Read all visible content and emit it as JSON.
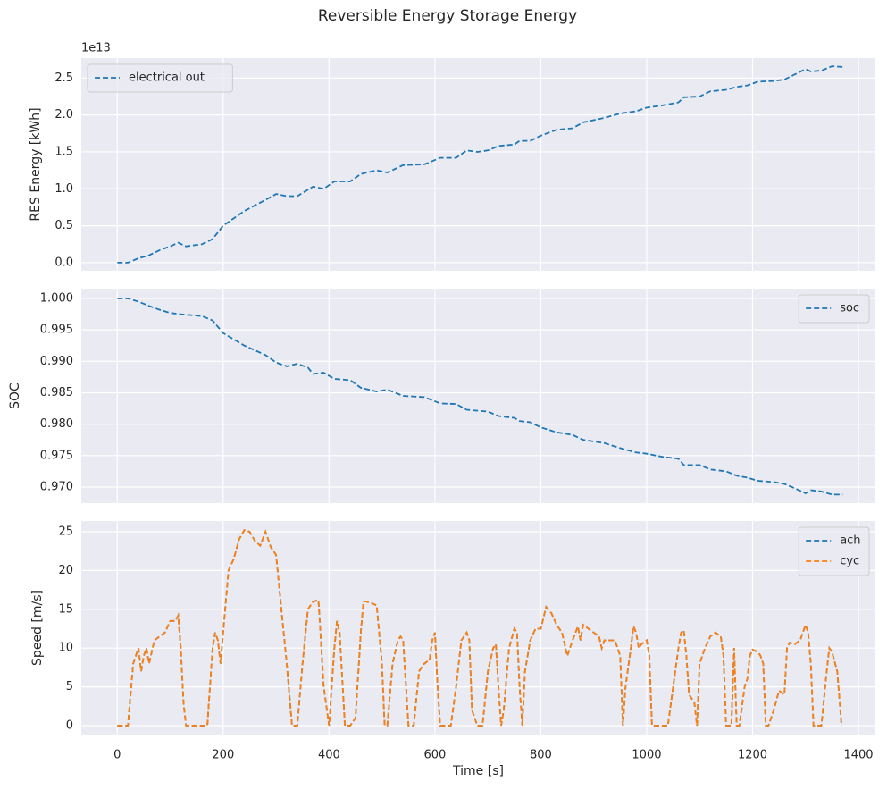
{
  "title": "Reversible Energy Storage Energy",
  "chart_data": [
    {
      "type": "line",
      "ylabel": "RES Energy [kWh]",
      "offset_label": "1e13",
      "xlim": [
        -68,
        1432
      ],
      "ylim": [
        -0.11,
        2.77
      ],
      "xticks": [
        0,
        200,
        400,
        600,
        800,
        1000,
        1200,
        1400
      ],
      "yticks": [
        {
          "value": 0,
          "label": "0.0"
        },
        0.5,
        {
          "value": 1,
          "label": "1.0"
        },
        1.5,
        {
          "value": 2,
          "label": "2.0"
        },
        2.5
      ],
      "grid": true,
      "legend": "upper left",
      "x": [
        0,
        20,
        40,
        60,
        80,
        100,
        115,
        130,
        160,
        180,
        200,
        240,
        280,
        300,
        320,
        340,
        370,
        390,
        410,
        440,
        460,
        490,
        510,
        540,
        580,
        610,
        640,
        660,
        680,
        700,
        720,
        750,
        760,
        780,
        800,
        830,
        860,
        880,
        920,
        950,
        980,
        1000,
        1030,
        1060,
        1070,
        1100,
        1120,
        1150,
        1170,
        1190,
        1210,
        1240,
        1260,
        1280,
        1300,
        1310,
        1330,
        1350,
        1370
      ],
      "series": [
        {
          "name": "electrical out",
          "color": "#1f77b4",
          "values": [
            0,
            0,
            0.06,
            0.1,
            0.17,
            0.22,
            0.27,
            0.22,
            0.25,
            0.32,
            0.5,
            0.7,
            0.85,
            0.93,
            0.9,
            0.9,
            1.03,
            1.0,
            1.1,
            1.1,
            1.2,
            1.25,
            1.22,
            1.32,
            1.33,
            1.42,
            1.42,
            1.52,
            1.5,
            1.52,
            1.58,
            1.6,
            1.65,
            1.65,
            1.72,
            1.8,
            1.82,
            1.9,
            1.96,
            2.02,
            2.05,
            2.1,
            2.13,
            2.17,
            2.24,
            2.25,
            2.32,
            2.34,
            2.38,
            2.4,
            2.45,
            2.46,
            2.48,
            2.55,
            2.62,
            2.59,
            2.6,
            2.66,
            2.65
          ]
        }
      ]
    },
    {
      "type": "line",
      "ylabel": "SOC",
      "xlim": [
        -68,
        1432
      ],
      "ylim": [
        0.96744,
        1.00156
      ],
      "xticks": [
        0,
        200,
        400,
        600,
        800,
        1000,
        1200,
        1400
      ],
      "yticks": [
        {
          "value": 0.97,
          "label": "0.970"
        },
        0.975,
        {
          "value": 0.98,
          "label": "0.980"
        },
        0.985,
        {
          "value": 0.99,
          "label": "0.990"
        },
        0.995,
        {
          "value": 1,
          "label": "1.000"
        }
      ],
      "grid": true,
      "legend": "upper right",
      "x": [
        0,
        20,
        40,
        60,
        80,
        100,
        120,
        160,
        180,
        200,
        240,
        280,
        300,
        320,
        340,
        360,
        370,
        390,
        410,
        440,
        460,
        490,
        510,
        540,
        580,
        610,
        640,
        660,
        700,
        720,
        750,
        760,
        780,
        800,
        830,
        860,
        880,
        920,
        950,
        980,
        1000,
        1030,
        1060,
        1070,
        1100,
        1120,
        1150,
        1170,
        1190,
        1210,
        1240,
        1260,
        1280,
        1300,
        1310,
        1330,
        1350,
        1370
      ],
      "series": [
        {
          "name": "soc",
          "color": "#1f77b4",
          "values": [
            1.0,
            1.0,
            0.9995,
            0.9988,
            0.9982,
            0.9977,
            0.9975,
            0.9972,
            0.9965,
            0.9945,
            0.9925,
            0.991,
            0.9898,
            0.9892,
            0.9896,
            0.989,
            0.988,
            0.9882,
            0.9872,
            0.987,
            0.9858,
            0.9852,
            0.9855,
            0.9845,
            0.9843,
            0.9833,
            0.9832,
            0.9823,
            0.982,
            0.9813,
            0.981,
            0.9805,
            0.9803,
            0.9795,
            0.9787,
            0.9783,
            0.9775,
            0.977,
            0.9762,
            0.9755,
            0.9753,
            0.9748,
            0.9745,
            0.9735,
            0.9735,
            0.9728,
            0.9725,
            0.9718,
            0.9715,
            0.971,
            0.9708,
            0.9705,
            0.9698,
            0.969,
            0.9695,
            0.9693,
            0.9688,
            0.9688
          ]
        }
      ]
    },
    {
      "type": "line",
      "ylabel": "Speed [m/s]",
      "xlabel": "Time [s]",
      "xlim": [
        -68,
        1432
      ],
      "ylim": [
        -1.15,
        26.38
      ],
      "xticks": [
        0,
        200,
        400,
        600,
        800,
        1000,
        1200,
        1400
      ],
      "yticks": [
        0,
        5,
        10,
        15,
        20,
        25
      ],
      "grid": true,
      "legend": "upper right",
      "x": [
        0,
        10,
        20,
        30,
        40,
        45,
        50,
        55,
        60,
        70,
        80,
        90,
        100,
        110,
        115,
        120,
        125,
        130,
        140,
        150,
        160,
        170,
        180,
        185,
        190,
        195,
        200,
        210,
        220,
        230,
        240,
        250,
        260,
        270,
        280,
        290,
        300,
        310,
        320,
        330,
        340,
        350,
        360,
        370,
        380,
        390,
        400,
        410,
        415,
        420,
        430,
        440,
        450,
        460,
        465,
        470,
        480,
        490,
        500,
        505,
        510,
        520,
        530,
        535,
        540,
        550,
        560,
        570,
        580,
        590,
        595,
        600,
        605,
        610,
        620,
        630,
        640,
        650,
        660,
        665,
        670,
        680,
        690,
        700,
        710,
        715,
        720,
        725,
        730,
        740,
        750,
        755,
        760,
        765,
        770,
        780,
        790,
        800,
        810,
        820,
        830,
        840,
        850,
        860,
        870,
        875,
        880,
        890,
        900,
        910,
        915,
        920,
        930,
        940,
        945,
        950,
        955,
        960,
        970,
        975,
        980,
        985,
        990,
        1000,
        1005,
        1010,
        1020,
        1030,
        1040,
        1050,
        1060,
        1065,
        1070,
        1075,
        1080,
        1085,
        1090,
        1095,
        1100,
        1110,
        1120,
        1130,
        1140,
        1145,
        1150,
        1160,
        1165,
        1170,
        1175,
        1185,
        1190,
        1195,
        1200,
        1210,
        1215,
        1220,
        1225,
        1230,
        1240,
        1250,
        1260,
        1265,
        1270,
        1280,
        1290,
        1300,
        1305,
        1310,
        1315,
        1330,
        1340,
        1345,
        1350,
        1360,
        1368
      ],
      "series": [
        {
          "name": "ach",
          "color": "#1f77b4",
          "values": [
            0,
            0,
            0,
            8,
            10,
            7,
            9,
            10,
            8,
            11,
            11.5,
            12,
            13.5,
            13.5,
            14.2,
            10,
            3,
            0,
            0,
            0,
            0,
            0,
            10,
            12,
            11,
            8,
            12,
            20,
            21.5,
            24,
            25.2,
            25,
            23.8,
            23.2,
            25,
            23,
            22,
            15,
            8,
            0,
            0,
            8,
            15,
            16,
            16.2,
            5,
            0,
            10,
            13.5,
            12,
            0,
            0,
            1,
            12,
            16,
            16,
            15.8,
            15.5,
            8,
            0,
            0,
            8,
            11,
            11.5,
            11,
            0,
            0,
            7,
            8,
            8.5,
            11,
            12,
            5,
            0,
            0,
            0,
            5,
            11,
            12,
            11,
            2,
            0,
            0,
            7,
            10,
            10.5,
            5,
            0,
            2,
            10,
            12.5,
            12,
            5,
            0,
            7,
            11,
            12.5,
            12.5,
            15.3,
            14.5,
            13,
            12,
            9,
            11,
            12.8,
            11,
            13,
            12.5,
            12,
            11.5,
            10,
            11,
            11,
            11,
            10,
            9,
            0,
            5,
            10,
            12.8,
            12,
            10,
            10.5,
            11,
            9,
            0,
            0,
            0,
            0,
            5,
            10,
            12,
            12.3,
            9,
            4,
            3.5,
            3,
            0,
            8,
            10,
            11.5,
            12,
            11.5,
            9,
            0,
            0,
            10,
            0,
            0,
            5,
            6,
            9,
            9.8,
            9.5,
            9,
            8,
            0,
            0,
            2,
            4.5,
            4,
            10,
            10.7,
            10.5,
            11,
            13,
            12,
            8,
            0,
            0,
            7,
            10,
            9.5,
            7,
            0
          ]
        },
        {
          "name": "cyc",
          "color": "#ff7f0e",
          "values": [
            0,
            0,
            0,
            8,
            10,
            7,
            9,
            10,
            8,
            11,
            11.5,
            12,
            13.5,
            13.5,
            14.2,
            10,
            3,
            0,
            0,
            0,
            0,
            0,
            10,
            12,
            11,
            8,
            12,
            20,
            21.5,
            24,
            25.2,
            25,
            23.8,
            23.2,
            25,
            23,
            22,
            15,
            8,
            0,
            0,
            8,
            15,
            16,
            16.2,
            5,
            0,
            10,
            13.5,
            12,
            0,
            0,
            1,
            12,
            16,
            16,
            15.8,
            15.5,
            8,
            0,
            0,
            8,
            11,
            11.5,
            11,
            0,
            0,
            7,
            8,
            8.5,
            11,
            12,
            5,
            0,
            0,
            0,
            5,
            11,
            12,
            11,
            2,
            0,
            0,
            7,
            10,
            10.5,
            5,
            0,
            2,
            10,
            12.5,
            12,
            5,
            0,
            7,
            11,
            12.5,
            12.5,
            15.3,
            14.5,
            13,
            12,
            9,
            11,
            12.8,
            11,
            13,
            12.5,
            12,
            11.5,
            10,
            11,
            11,
            11,
            10,
            9,
            0,
            5,
            10,
            12.8,
            12,
            10,
            10.5,
            11,
            9,
            0,
            0,
            0,
            0,
            5,
            10,
            12,
            12.3,
            9,
            4,
            3.5,
            3,
            0,
            8,
            10,
            11.5,
            12,
            11.5,
            9,
            0,
            0,
            10,
            0,
            0,
            5,
            6,
            9,
            9.8,
            9.5,
            9,
            8,
            0,
            0,
            2,
            4.5,
            4,
            10,
            10.7,
            10.5,
            11,
            13,
            12,
            8,
            0,
            0,
            7,
            10,
            9.5,
            7,
            0
          ]
        }
      ]
    }
  ]
}
